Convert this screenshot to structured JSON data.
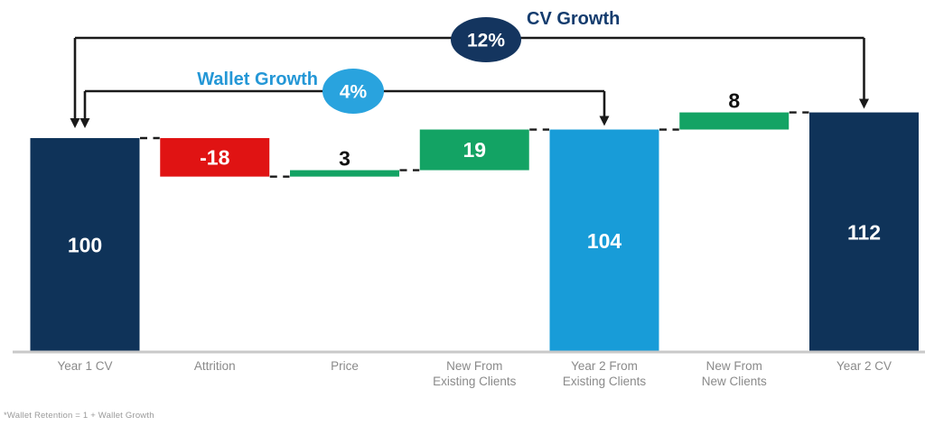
{
  "chart_data": {
    "type": "bar",
    "subtype": "waterfall",
    "grid": false,
    "y_axis_visible": false,
    "connector_style": "dashed",
    "ylim": [
      0,
      120
    ],
    "steps": [
      {
        "label": "Year 1 CV",
        "label_lines": [
          "Year 1 CV"
        ],
        "value": 100,
        "display": "100",
        "start": 0,
        "end": 100,
        "kind": "total",
        "value_placement": "inside",
        "value_color": "#ffffff"
      },
      {
        "label": "Attrition",
        "label_lines": [
          "Attrition"
        ],
        "value": -18,
        "display": "-18",
        "start": 100,
        "end": 82,
        "kind": "decrease",
        "value_placement": "inside",
        "value_color": "#ffffff"
      },
      {
        "label": "Price",
        "label_lines": [
          "Price"
        ],
        "value": 3,
        "display": "3",
        "start": 82,
        "end": 85,
        "kind": "increase",
        "value_placement": "above",
        "value_color": "#111111"
      },
      {
        "label": "New From Existing Clients",
        "label_lines": [
          "New From",
          "Existing Clients"
        ],
        "value": 19,
        "display": "19",
        "start": 85,
        "end": 104,
        "kind": "increase",
        "value_placement": "inside",
        "value_color": "#ffffff"
      },
      {
        "label": "Year 2 From Existing Clients",
        "label_lines": [
          "Year 2 From",
          "Existing Clients"
        ],
        "value": 104,
        "display": "104",
        "start": 0,
        "end": 104,
        "kind": "subtotal",
        "value_placement": "inside",
        "value_color": "#ffffff"
      },
      {
        "label": "New From New Clients",
        "label_lines": [
          "New From",
          "New Clients"
        ],
        "value": 8,
        "display": "8",
        "start": 104,
        "end": 112,
        "kind": "increase",
        "value_placement": "above",
        "value_color": "#111111"
      },
      {
        "label": "Year 2 CV",
        "label_lines": [
          "Year 2 CV"
        ],
        "value": 112,
        "display": "112",
        "start": 0,
        "end": 112,
        "kind": "total",
        "value_placement": "inside",
        "value_color": "#ffffff"
      }
    ],
    "annotations": [
      {
        "label": "CV Growth",
        "badge": "12%",
        "from_index": 0,
        "to_index": 6,
        "ellipse_color": "#14355f",
        "label_color": "#143c6e",
        "badge_text_color": "#ffffff"
      },
      {
        "label": "Wallet Growth",
        "badge": "4%",
        "from_index": 0,
        "to_index": 4,
        "ellipse_color": "#29a3de",
        "label_color": "#2497d6",
        "badge_text_color": "#ffffff"
      }
    ],
    "colors": {
      "total": "#0f3359",
      "subtotal": "#189cd8",
      "increase": "#13a364",
      "decrease": "#e01313",
      "axis_line": "#c9c9c9",
      "axis_label": "#8a8a8a",
      "connector": "#1a1a1a"
    },
    "footnote": "*Wallet Retention = 1 + Wallet Growth"
  }
}
